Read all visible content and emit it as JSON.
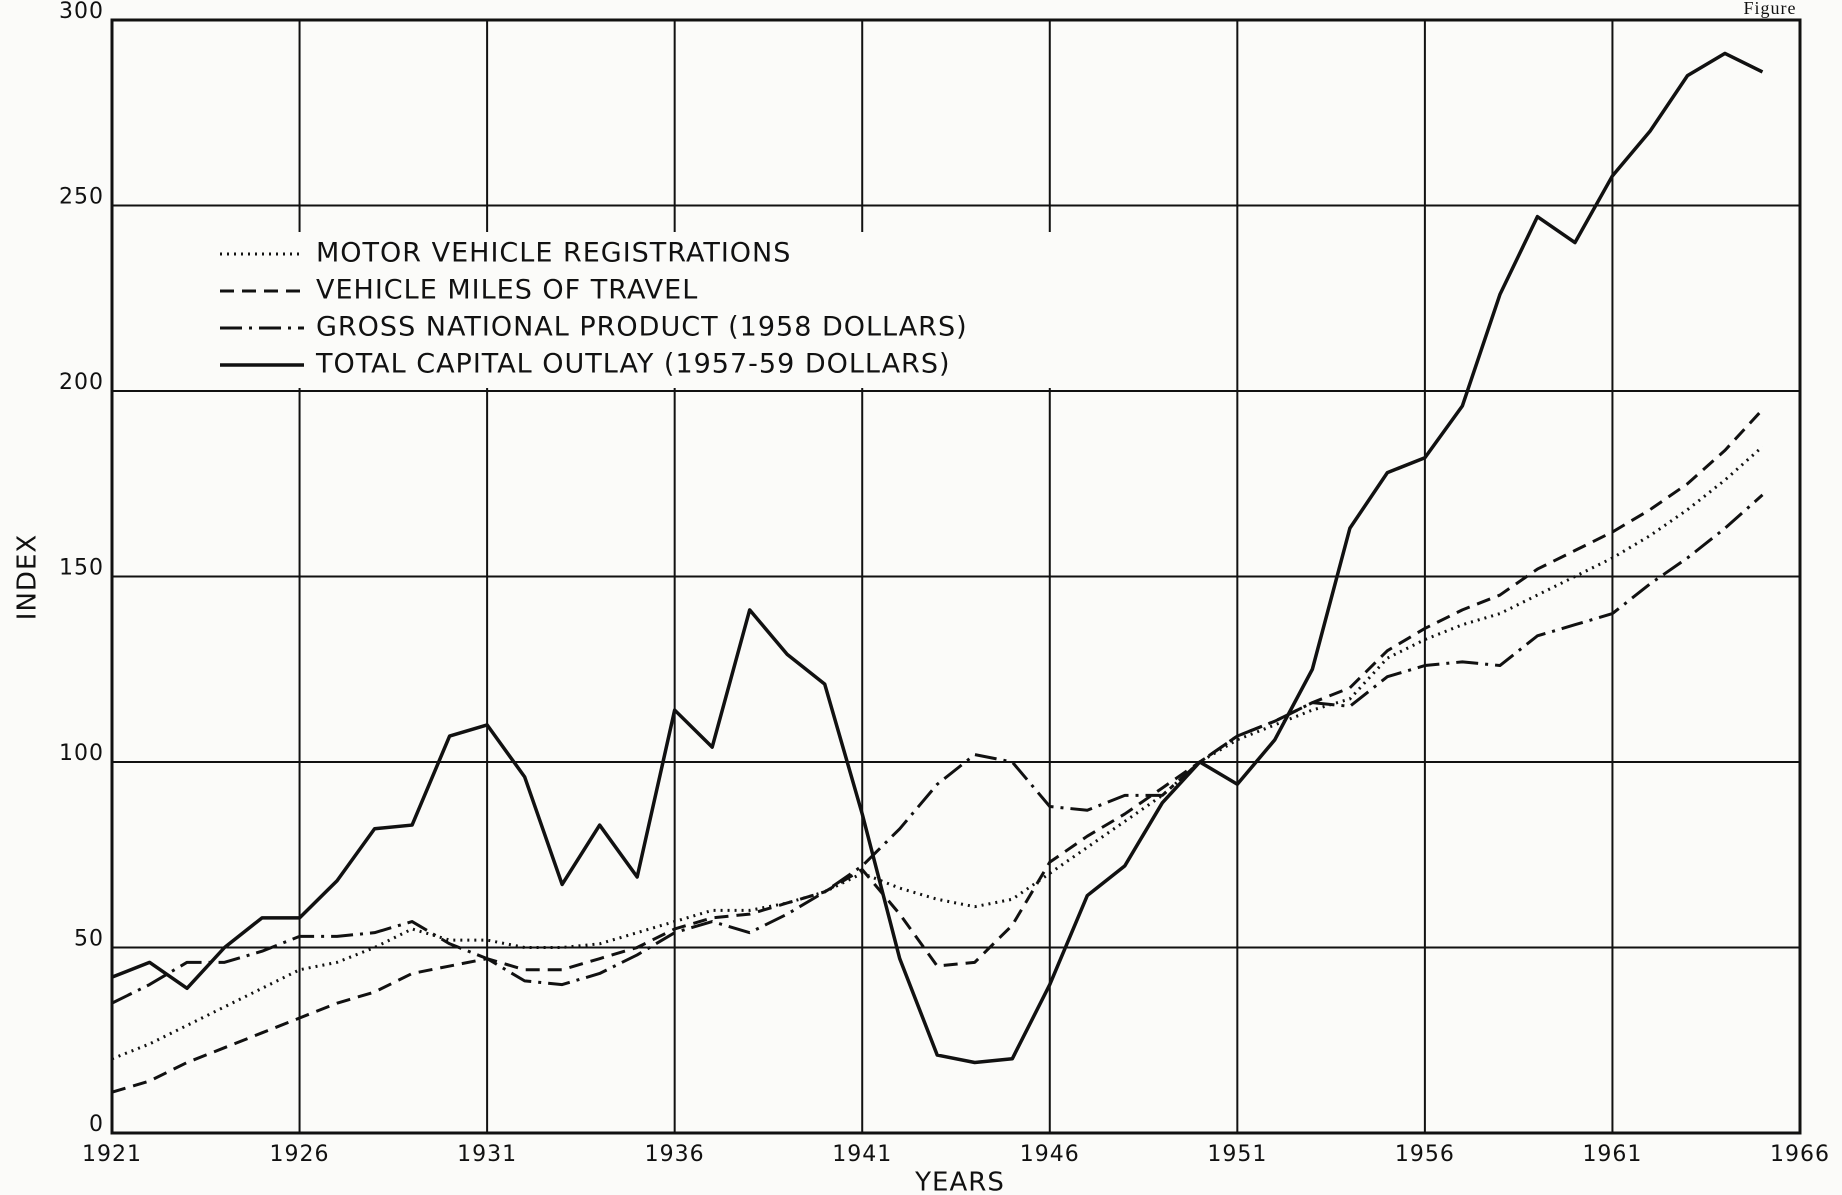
{
  "chart_data": {
    "type": "line",
    "annotation": "Figure",
    "xlabel": "YEARS",
    "ylabel": "INDEX",
    "x": [
      1921,
      1922,
      1923,
      1924,
      1925,
      1926,
      1927,
      1928,
      1929,
      1930,
      1931,
      1932,
      1933,
      1934,
      1935,
      1936,
      1937,
      1938,
      1939,
      1940,
      1941,
      1942,
      1943,
      1944,
      1945,
      1946,
      1947,
      1948,
      1949,
      1950,
      1951,
      1952,
      1953,
      1954,
      1955,
      1956,
      1957,
      1958,
      1959,
      1960,
      1961,
      1962,
      1963,
      1964,
      1965
    ],
    "series": [
      {
        "name": "MOTOR VEHICLE REGISTRATIONS",
        "color": "#111111",
        "style": "dotted",
        "values": [
          20,
          24,
          29,
          34,
          39,
          44,
          46,
          50,
          55,
          52,
          52,
          50,
          50,
          51,
          54,
          57,
          60,
          60,
          62,
          65,
          70,
          66,
          63,
          61,
          63,
          70,
          77,
          84,
          91,
          100,
          106,
          110,
          114,
          117,
          128,
          133,
          137,
          140,
          145,
          150,
          155,
          161,
          168,
          176,
          185
        ]
      },
      {
        "name": "VEHICLE MILES OF TRAVEL",
        "color": "#111111",
        "style": "dashed",
        "values": [
          11,
          14,
          19,
          23,
          27,
          31,
          35,
          38,
          43,
          45,
          47,
          44,
          44,
          47,
          50,
          55,
          58,
          59,
          62,
          65,
          71,
          59,
          45,
          46,
          56,
          73,
          80,
          86,
          93,
          100,
          107,
          111,
          116,
          120,
          130,
          136,
          141,
          145,
          152,
          157,
          162,
          168,
          175,
          184,
          195
        ]
      },
      {
        "name": "GROSS NATIONAL PRODUCT (1958 DOLLARS)",
        "color": "#111111",
        "style": "dashdot",
        "values": [
          35,
          40,
          46,
          46,
          49,
          53,
          53,
          54,
          57,
          51,
          47,
          41,
          40,
          43,
          48,
          54,
          57,
          54,
          59,
          65,
          72,
          82,
          94,
          102,
          100,
          88,
          87,
          91,
          91,
          100,
          107,
          111,
          116,
          115,
          123,
          126,
          127,
          126,
          134,
          137,
          140,
          148,
          155,
          163,
          172
        ]
      },
      {
        "name": "TOTAL CAPITAL OUTLAY (1957-59 DOLLARS)",
        "color": "#111111",
        "style": "solid",
        "values": [
          42,
          46,
          39,
          50,
          58,
          58,
          68,
          82,
          83,
          107,
          110,
          96,
          67,
          83,
          69,
          114,
          104,
          141,
          129,
          121,
          86,
          47,
          21,
          19,
          20,
          40,
          64,
          72,
          89,
          100,
          94,
          106,
          125,
          163,
          178,
          182,
          196,
          226,
          247,
          240,
          258,
          270,
          285,
          291,
          286
        ]
      }
    ],
    "xlim": [
      1921,
      1966
    ],
    "xticks": [
      1921,
      1926,
      1931,
      1936,
      1941,
      1946,
      1951,
      1956,
      1961,
      1966
    ],
    "ylim": [
      0,
      300
    ],
    "yticks": [
      0,
      50,
      100,
      150,
      200,
      250,
      300
    ],
    "grid": true,
    "legend": "upper left"
  }
}
